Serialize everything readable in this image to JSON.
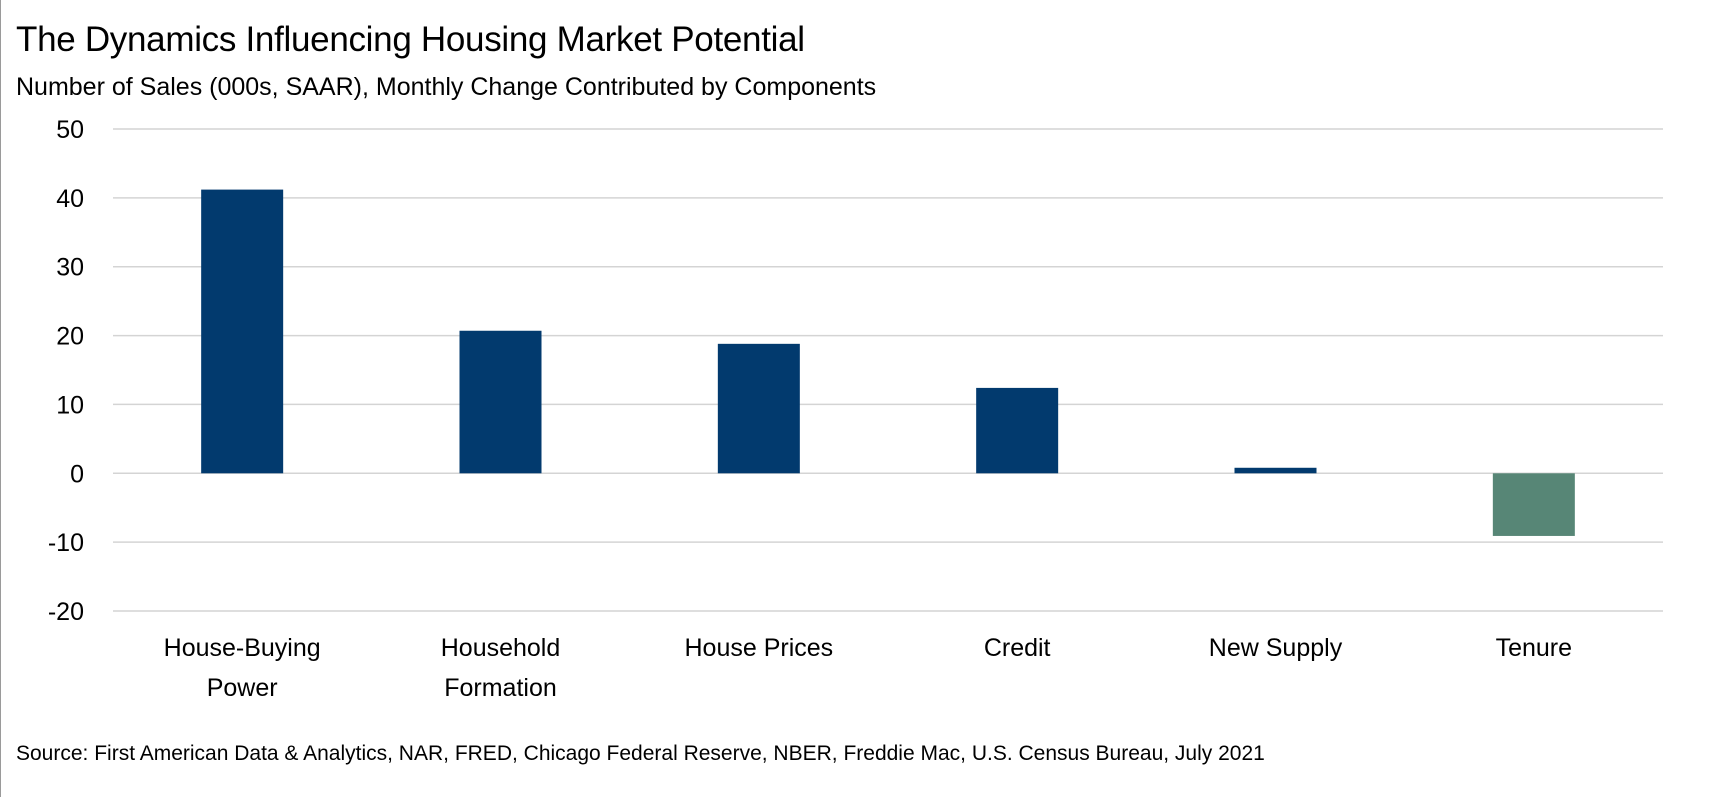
{
  "colors": {
    "positive": "#023a6e",
    "negative": "#578676",
    "grid": "#d4d4d4"
  },
  "chart_data": {
    "type": "bar",
    "title": "The Dynamics Influencing Housing Market Potential",
    "subtitle": "Number of Sales (000s, SAAR), Monthly Change Contributed by Components",
    "source": "Source: First American Data & Analytics, NAR, FRED, Chicago Federal Reserve, NBER, Freddie Mac, U.S. Census Bureau, July 2021",
    "categories": [
      [
        "House-Buying",
        "Power"
      ],
      [
        "Household",
        "Formation"
      ],
      [
        "House Prices"
      ],
      [
        "Credit"
      ],
      [
        "New Supply"
      ],
      [
        "Tenure"
      ]
    ],
    "values": [
      41.2,
      20.7,
      18.8,
      12.4,
      0.8,
      -9.1
    ],
    "ylim": [
      -20,
      50
    ],
    "yticks": [
      "50",
      "40",
      "30",
      "20",
      "10",
      "0",
      "-10",
      "-20"
    ],
    "grid": true,
    "legend": "none"
  }
}
